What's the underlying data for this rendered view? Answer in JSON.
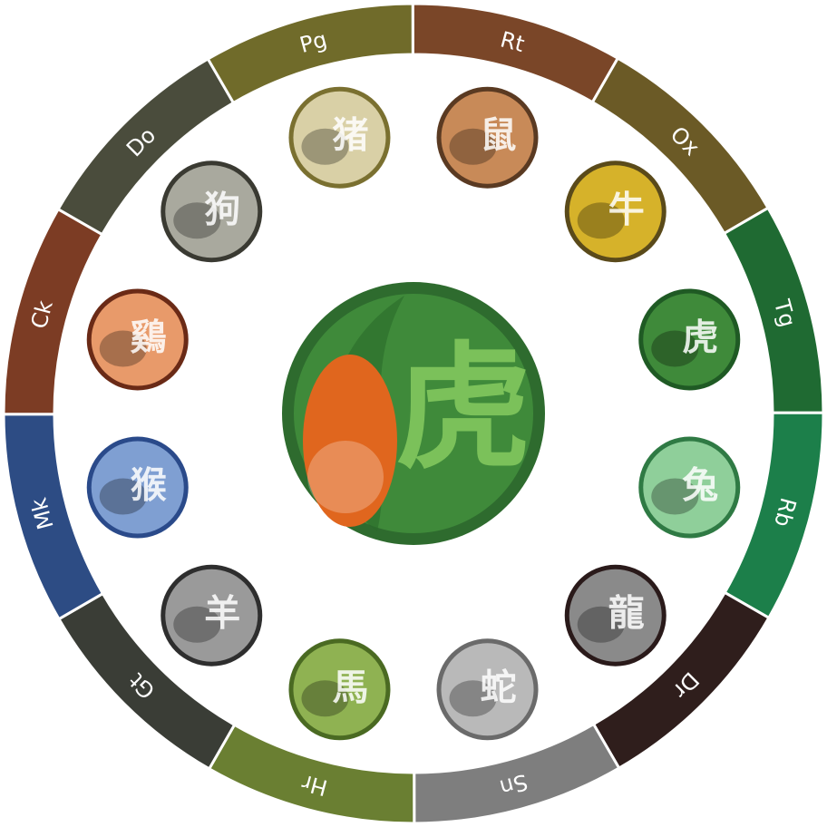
{
  "center": {
    "name": "tiger",
    "character": "虎",
    "color": "#3f8a3a",
    "ring": "#2e6b2e",
    "glyph_color": "#7bc15a"
  },
  "segments": [
    {
      "key": "rt",
      "label": "Rt",
      "color": "#7a4628"
    },
    {
      "key": "ox",
      "label": "Ox",
      "color": "#6b5a26"
    },
    {
      "key": "tg",
      "label": "Tg",
      "color": "#1f6a32"
    },
    {
      "key": "rb",
      "label": "Rb",
      "color": "#1c7f4a"
    },
    {
      "key": "dr",
      "label": "Dr",
      "color": "#2f1e1c"
    },
    {
      "key": "sn",
      "label": "Sn",
      "color": "#7e7e7e"
    },
    {
      "key": "hr",
      "label": "Hr",
      "color": "#6a7f32"
    },
    {
      "key": "gt",
      "label": "Gt",
      "color": "#3a3d36"
    },
    {
      "key": "mk",
      "label": "Mk",
      "color": "#2d4c84"
    },
    {
      "key": "ck",
      "label": "Ck",
      "color": "#7c3c24"
    },
    {
      "key": "do",
      "label": "Do",
      "color": "#4a4c3c"
    },
    {
      "key": "pg",
      "label": "Pg",
      "color": "#706b2a"
    }
  ],
  "medallions": [
    {
      "key": "rat",
      "animal": "rat-icon",
      "character": "鼠",
      "bg": "#c88a58",
      "ring": "#5a3a22"
    },
    {
      "key": "ox",
      "animal": "ox-icon",
      "character": "牛",
      "bg": "#d6b22a",
      "ring": "#5a4a1a"
    },
    {
      "key": "tiger",
      "animal": "tiger-icon",
      "character": "虎",
      "bg": "#3f8a3a",
      "ring": "#1f5a24"
    },
    {
      "key": "rabbit",
      "animal": "rabbit-icon",
      "character": "兔",
      "bg": "#8fcf9a",
      "ring": "#2f7a44"
    },
    {
      "key": "dragon",
      "animal": "dragon-icon",
      "character": "龍",
      "bg": "#8a8a8a",
      "ring": "#2a1a1a"
    },
    {
      "key": "snake",
      "animal": "snake-icon",
      "character": "蛇",
      "bg": "#b9b9b9",
      "ring": "#6a6a6a"
    },
    {
      "key": "horse",
      "animal": "horse-icon",
      "character": "馬",
      "bg": "#8fb252",
      "ring": "#4a6a22"
    },
    {
      "key": "goat",
      "animal": "goat-icon",
      "character": "羊",
      "bg": "#9a9a9a",
      "ring": "#2e2e2e"
    },
    {
      "key": "monkey",
      "animal": "monkey-icon",
      "character": "猴",
      "bg": "#7f9fd2",
      "ring": "#2a4a8a"
    },
    {
      "key": "rooster",
      "animal": "rooster-icon",
      "character": "鷄",
      "bg": "#e89a6a",
      "ring": "#6a2a16"
    },
    {
      "key": "dog",
      "animal": "dog-icon",
      "character": "狗",
      "bg": "#a9a99e",
      "ring": "#3a3a32"
    },
    {
      "key": "pig",
      "animal": "pig-icon",
      "character": "猪",
      "bg": "#d9d0a6",
      "ring": "#7a7030"
    }
  ]
}
